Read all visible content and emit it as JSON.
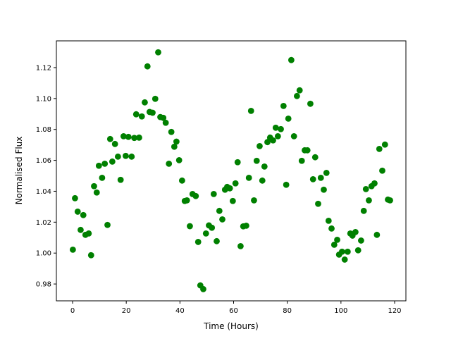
{
  "chart_data": {
    "type": "scatter",
    "title": "",
    "xlabel": "Time (Hours)",
    "ylabel": "Normalised Flux",
    "xlim": [
      -6.04,
      124.2
    ],
    "ylim": [
      0.9691,
      1.1373
    ],
    "xticks": [
      0,
      20,
      40,
      60,
      80,
      100,
      120
    ],
    "xtick_labels": [
      "0",
      "20",
      "40",
      "60",
      "80",
      "100",
      "120"
    ],
    "yticks": [
      0.98,
      1.0,
      1.02,
      1.04,
      1.06,
      1.08,
      1.1,
      1.12
    ],
    "ytick_labels": [
      "0.98",
      "1.00",
      "1.02",
      "1.04",
      "1.06",
      "1.08",
      "1.10",
      "1.12"
    ],
    "grid": false,
    "marker_color": "#008000",
    "points": [
      [
        0.1,
        1.0022
      ],
      [
        0.9,
        1.0355
      ],
      [
        1.9,
        1.0268
      ],
      [
        3.0,
        1.015
      ],
      [
        4.0,
        1.0246
      ],
      [
        4.8,
        1.0118
      ],
      [
        6.0,
        1.0127
      ],
      [
        6.9,
        0.9986
      ],
      [
        8.0,
        1.0433
      ],
      [
        9.0,
        1.0392
      ],
      [
        9.8,
        1.0565
      ],
      [
        11.0,
        1.0487
      ],
      [
        12.0,
        1.0578
      ],
      [
        13.0,
        1.0182
      ],
      [
        14.0,
        1.0738
      ],
      [
        14.8,
        1.0592
      ],
      [
        15.8,
        1.0706
      ],
      [
        16.9,
        1.0624
      ],
      [
        17.9,
        1.0474
      ],
      [
        19.0,
        1.0756
      ],
      [
        19.8,
        1.0629
      ],
      [
        20.8,
        1.0752
      ],
      [
        22.0,
        1.0624
      ],
      [
        23.0,
        1.0745
      ],
      [
        23.7,
        1.0898
      ],
      [
        24.8,
        1.0747
      ],
      [
        25.8,
        1.0884
      ],
      [
        26.9,
        1.0975
      ],
      [
        27.9,
        1.1208
      ],
      [
        28.7,
        1.0913
      ],
      [
        29.8,
        1.0908
      ],
      [
        30.8,
        1.0998
      ],
      [
        31.9,
        1.1299
      ],
      [
        32.7,
        1.088
      ],
      [
        33.8,
        1.0875
      ],
      [
        34.7,
        1.0843
      ],
      [
        35.9,
        1.0578
      ],
      [
        36.8,
        1.0784
      ],
      [
        37.9,
        1.0688
      ],
      [
        38.7,
        1.0721
      ],
      [
        39.7,
        1.0601
      ],
      [
        40.8,
        1.0469
      ],
      [
        41.8,
        1.0337
      ],
      [
        42.6,
        1.0341
      ],
      [
        43.7,
        1.0174
      ],
      [
        44.7,
        1.0382
      ],
      [
        45.9,
        1.0369
      ],
      [
        46.8,
        1.0072
      ],
      [
        47.6,
        0.9791
      ],
      [
        48.7,
        0.9767
      ],
      [
        49.7,
        1.0127
      ],
      [
        50.8,
        1.0179
      ],
      [
        51.9,
        1.0164
      ],
      [
        52.6,
        1.0382
      ],
      [
        53.7,
        1.0077
      ],
      [
        54.7,
        1.0273
      ],
      [
        55.8,
        1.0218
      ],
      [
        56.8,
        1.041
      ],
      [
        57.6,
        1.0428
      ],
      [
        58.6,
        1.0419
      ],
      [
        59.7,
        1.0337
      ],
      [
        60.7,
        1.0451
      ],
      [
        61.5,
        1.0588
      ],
      [
        62.6,
        1.0045
      ],
      [
        63.6,
        1.0173
      ],
      [
        64.7,
        1.0177
      ],
      [
        65.7,
        1.0487
      ],
      [
        66.5,
        1.092
      ],
      [
        67.6,
        1.0341
      ],
      [
        68.6,
        1.0597
      ],
      [
        69.7,
        1.0692
      ],
      [
        70.7,
        1.0469
      ],
      [
        71.5,
        1.056
      ],
      [
        72.6,
        1.0718
      ],
      [
        73.6,
        1.0747
      ],
      [
        74.7,
        1.0729
      ],
      [
        75.7,
        1.0811
      ],
      [
        76.5,
        1.0756
      ],
      [
        77.6,
        1.0802
      ],
      [
        78.6,
        1.0952
      ],
      [
        79.6,
        1.0442
      ],
      [
        80.4,
        1.087
      ],
      [
        81.5,
        1.1249
      ],
      [
        82.5,
        1.0756
      ],
      [
        83.6,
        1.1016
      ],
      [
        84.6,
        1.1053
      ],
      [
        85.4,
        1.0597
      ],
      [
        86.5,
        1.0665
      ],
      [
        87.5,
        1.0665
      ],
      [
        88.6,
        1.0966
      ],
      [
        89.6,
        1.0478
      ],
      [
        90.4,
        1.062
      ],
      [
        91.5,
        1.0319
      ],
      [
        92.5,
        1.0487
      ],
      [
        93.6,
        1.041
      ],
      [
        94.6,
        1.0519
      ],
      [
        95.4,
        1.0209
      ],
      [
        96.5,
        1.0159
      ],
      [
        97.5,
        1.0054
      ],
      [
        98.6,
        1.0086
      ],
      [
        99.3,
        0.999
      ],
      [
        100.4,
        1.0009
      ],
      [
        101.4,
        0.9958
      ],
      [
        102.5,
        1.0009
      ],
      [
        103.5,
        1.0127
      ],
      [
        104.3,
        1.0113
      ],
      [
        105.4,
        1.0136
      ],
      [
        106.4,
        1.0018
      ],
      [
        107.5,
        1.0081
      ],
      [
        108.5,
        1.0273
      ],
      [
        109.3,
        1.0414
      ],
      [
        110.4,
        1.0341
      ],
      [
        111.4,
        1.0433
      ],
      [
        112.5,
        1.0451
      ],
      [
        113.4,
        1.0118
      ],
      [
        114.3,
        1.0674
      ],
      [
        115.4,
        1.0533
      ],
      [
        116.4,
        1.0702
      ],
      [
        117.5,
        1.0346
      ],
      [
        118.3,
        1.0341
      ]
    ]
  }
}
